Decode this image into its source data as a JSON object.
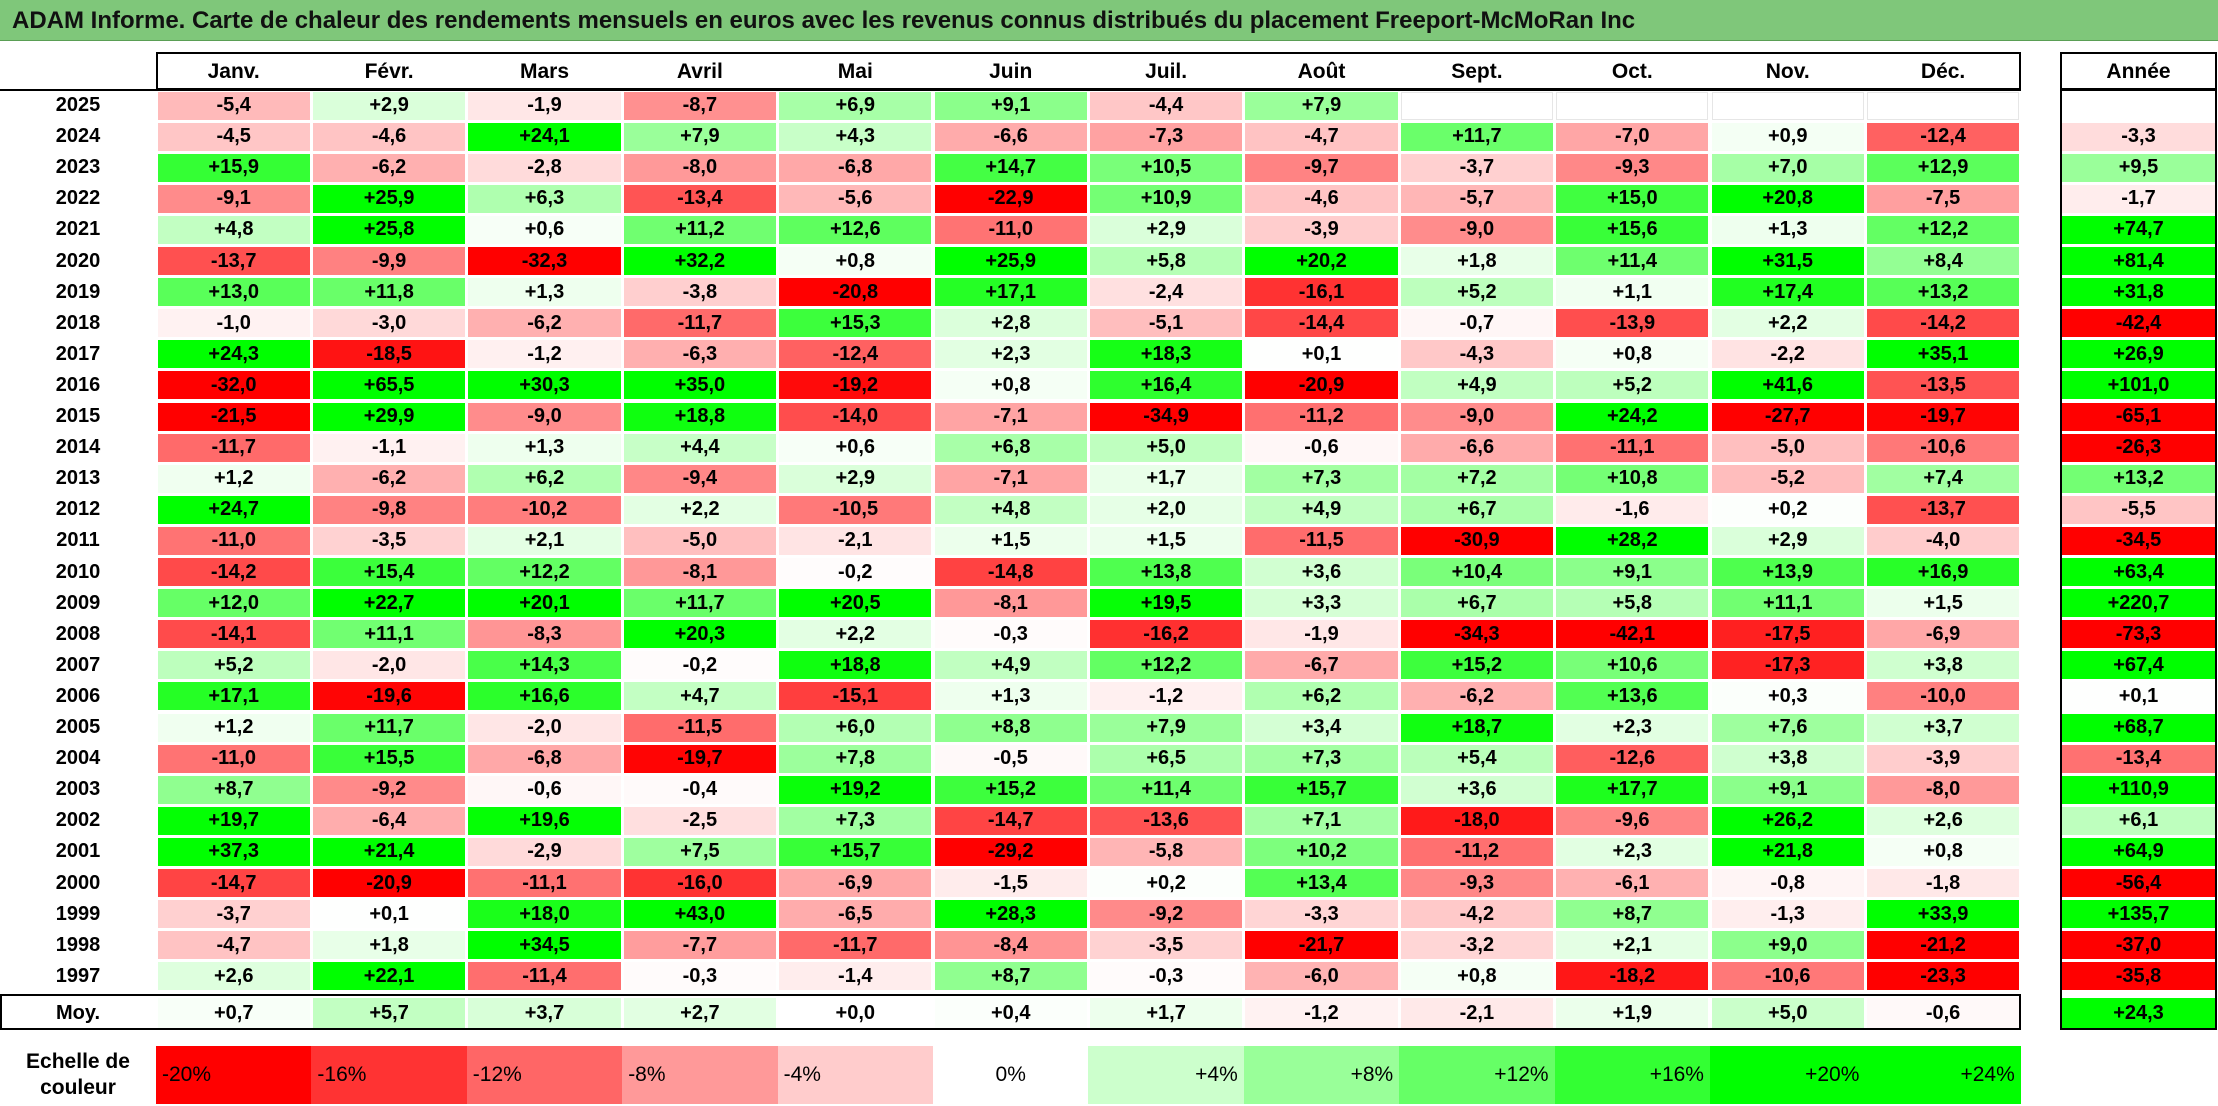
{
  "title": "ADAM Informe. Carte de chaleur des rendements mensuels en euros avec les revenus connus distribués du placement Freeport-McMoRan Inc",
  "chart_data": {
    "type": "heatmap",
    "months": [
      "Janv.",
      "Févr.",
      "Mars",
      "Avril",
      "Mai",
      "Juin",
      "Juil.",
      "Août",
      "Sept.",
      "Oct.",
      "Nov.",
      "Déc."
    ],
    "year_header": "Année",
    "rows": [
      {
        "year": "2025",
        "values": [
          -5.4,
          2.9,
          -1.9,
          -8.7,
          6.9,
          9.1,
          -4.4,
          7.9,
          null,
          null,
          null,
          null
        ],
        "annual": null
      },
      {
        "year": "2024",
        "values": [
          -4.5,
          -4.6,
          24.1,
          7.9,
          4.3,
          -6.6,
          -7.3,
          -4.7,
          11.7,
          -7.0,
          0.9,
          -12.4
        ],
        "annual": -3.3
      },
      {
        "year": "2023",
        "values": [
          15.9,
          -6.2,
          -2.8,
          -8.0,
          -6.8,
          14.7,
          10.5,
          -9.7,
          -3.7,
          -9.3,
          7.0,
          12.9
        ],
        "annual": 9.5
      },
      {
        "year": "2022",
        "values": [
          -9.1,
          25.9,
          6.3,
          -13.4,
          -5.6,
          -22.9,
          10.9,
          -4.6,
          -5.7,
          15.0,
          20.8,
          -7.5
        ],
        "annual": -1.7
      },
      {
        "year": "2021",
        "values": [
          4.8,
          25.8,
          0.6,
          11.2,
          12.6,
          -11.0,
          2.9,
          -3.9,
          -9.0,
          15.6,
          1.3,
          12.2
        ],
        "annual": 74.7
      },
      {
        "year": "2020",
        "values": [
          -13.7,
          -9.9,
          -32.3,
          32.2,
          0.8,
          25.9,
          5.8,
          20.2,
          1.8,
          11.4,
          31.5,
          8.4
        ],
        "annual": 81.4
      },
      {
        "year": "2019",
        "values": [
          13.0,
          11.8,
          1.3,
          -3.8,
          -20.8,
          17.1,
          -2.4,
          -16.1,
          5.2,
          1.1,
          17.4,
          13.2
        ],
        "annual": 31.8
      },
      {
        "year": "2018",
        "values": [
          -1.0,
          -3.0,
          -6.2,
          -11.7,
          15.3,
          2.8,
          -5.1,
          -14.4,
          -0.7,
          -13.9,
          2.2,
          -14.2
        ],
        "annual": -42.4
      },
      {
        "year": "2017",
        "values": [
          24.3,
          -18.5,
          -1.2,
          -6.3,
          -12.4,
          2.3,
          18.3,
          0.1,
          -4.3,
          0.8,
          -2.2,
          35.1
        ],
        "annual": 26.9
      },
      {
        "year": "2016",
        "values": [
          -32.0,
          65.5,
          30.3,
          35.0,
          -19.2,
          0.8,
          16.4,
          -20.9,
          4.9,
          5.2,
          41.6,
          -13.5
        ],
        "annual": 101.0
      },
      {
        "year": "2015",
        "values": [
          -21.5,
          29.9,
          -9.0,
          18.8,
          -14.0,
          -7.1,
          -34.9,
          -11.2,
          -9.0,
          24.2,
          -27.7,
          -19.7
        ],
        "annual": -65.1
      },
      {
        "year": "2014",
        "values": [
          -11.7,
          -1.1,
          1.3,
          4.4,
          0.6,
          6.8,
          5.0,
          -0.6,
          -6.6,
          -11.1,
          -5.0,
          -10.6
        ],
        "annual": -26.3
      },
      {
        "year": "2013",
        "values": [
          1.2,
          -6.2,
          6.2,
          -9.4,
          2.9,
          -7.1,
          1.7,
          7.3,
          7.2,
          10.8,
          -5.2,
          7.4
        ],
        "annual": 13.2
      },
      {
        "year": "2012",
        "values": [
          24.7,
          -9.8,
          -10.2,
          2.2,
          -10.5,
          4.8,
          2.0,
          4.9,
          6.7,
          -1.6,
          0.2,
          -13.7
        ],
        "annual": -5.5
      },
      {
        "year": "2011",
        "values": [
          -11.0,
          -3.5,
          2.1,
          -5.0,
          -2.1,
          1.5,
          1.5,
          -11.5,
          -30.9,
          28.2,
          2.9,
          -4.0
        ],
        "annual": -34.5
      },
      {
        "year": "2010",
        "values": [
          -14.2,
          15.4,
          12.2,
          -8.1,
          -0.2,
          -14.8,
          13.8,
          3.6,
          10.4,
          9.1,
          13.9,
          16.9
        ],
        "annual": 63.4
      },
      {
        "year": "2009",
        "values": [
          12.0,
          22.7,
          20.1,
          11.7,
          20.5,
          -8.1,
          19.5,
          3.3,
          6.7,
          5.8,
          11.1,
          1.5
        ],
        "annual": 220.7
      },
      {
        "year": "2008",
        "values": [
          -14.1,
          11.1,
          -8.3,
          20.3,
          2.2,
          -0.3,
          -16.2,
          -1.9,
          -34.3,
          -42.1,
          -17.5,
          -6.9
        ],
        "annual": -73.3
      },
      {
        "year": "2007",
        "values": [
          5.2,
          -2.0,
          14.3,
          -0.2,
          18.8,
          4.9,
          12.2,
          -6.7,
          15.2,
          10.6,
          -17.3,
          3.8
        ],
        "annual": 67.4
      },
      {
        "year": "2006",
        "values": [
          17.1,
          -19.6,
          16.6,
          4.7,
          -15.1,
          1.3,
          -1.2,
          6.2,
          -6.2,
          13.6,
          0.3,
          -10.0
        ],
        "annual": 0.1
      },
      {
        "year": "2005",
        "values": [
          1.2,
          11.7,
          -2.0,
          -11.5,
          6.0,
          8.8,
          7.9,
          3.4,
          18.7,
          2.3,
          7.6,
          3.7
        ],
        "annual": 68.7
      },
      {
        "year": "2004",
        "values": [
          -11.0,
          15.5,
          -6.8,
          -19.7,
          7.8,
          -0.5,
          6.5,
          7.3,
          5.4,
          -12.6,
          3.8,
          -3.9
        ],
        "annual": -13.4
      },
      {
        "year": "2003",
        "values": [
          8.7,
          -9.2,
          -0.6,
          -0.4,
          19.2,
          15.2,
          11.4,
          15.7,
          3.6,
          17.7,
          9.1,
          -8.0
        ],
        "annual": 110.9
      },
      {
        "year": "2002",
        "values": [
          19.7,
          -6.4,
          19.6,
          -2.5,
          7.3,
          -14.7,
          -13.6,
          7.1,
          -18.0,
          -9.6,
          26.2,
          2.6
        ],
        "annual": 6.1
      },
      {
        "year": "2001",
        "values": [
          37.3,
          21.4,
          -2.9,
          7.5,
          15.7,
          -29.2,
          -5.8,
          10.2,
          -11.2,
          2.3,
          21.8,
          0.8
        ],
        "annual": 64.9
      },
      {
        "year": "2000",
        "values": [
          -14.7,
          -20.9,
          -11.1,
          -16.0,
          -6.9,
          -1.5,
          0.2,
          13.4,
          -9.3,
          -6.1,
          -0.8,
          -1.8
        ],
        "annual": -56.4
      },
      {
        "year": "1999",
        "values": [
          -3.7,
          0.1,
          18.0,
          43.0,
          -6.5,
          28.3,
          -9.2,
          -3.3,
          -4.2,
          8.7,
          -1.3,
          33.9
        ],
        "annual": 135.7
      },
      {
        "year": "1998",
        "values": [
          -4.7,
          1.8,
          34.5,
          -7.7,
          -11.7,
          -8.4,
          -3.5,
          -21.7,
          -3.2,
          2.1,
          9.0,
          -21.2
        ],
        "annual": -37.0
      },
      {
        "year": "1997",
        "values": [
          2.6,
          22.1,
          -11.4,
          -0.3,
          -1.4,
          8.7,
          -0.3,
          -6.0,
          0.8,
          -18.2,
          -10.6,
          -23.3
        ],
        "annual": -35.8
      }
    ],
    "average": {
      "label": "Moy.",
      "values": [
        0.7,
        5.7,
        3.7,
        2.7,
        0.0,
        0.4,
        1.7,
        -1.2,
        -2.1,
        1.9,
        5.0,
        -0.6
      ],
      "annual": 24.3
    },
    "scale": {
      "label_line1": "Echelle de",
      "label_line2": "couleur",
      "stops": [
        {
          "text": "-20%",
          "value": -20
        },
        {
          "text": "-16%",
          "value": -16
        },
        {
          "text": "-12%",
          "value": -12
        },
        {
          "text": "-8%",
          "value": -8
        },
        {
          "text": "-4%",
          "value": -4
        },
        {
          "text": "0%",
          "value": 0
        },
        {
          "text": "+4%",
          "value": 4
        },
        {
          "text": "+8%",
          "value": 8
        },
        {
          "text": "+12%",
          "value": 12
        },
        {
          "text": "+16%",
          "value": 16
        },
        {
          "text": "+20%",
          "value": 20
        },
        {
          "text": "+24%",
          "value": 24
        }
      ]
    },
    "colors": {
      "negative": "#ff0000",
      "neutral": "#ffffff",
      "positive": "#00ff00",
      "title_bg": "#7fc77a"
    }
  }
}
